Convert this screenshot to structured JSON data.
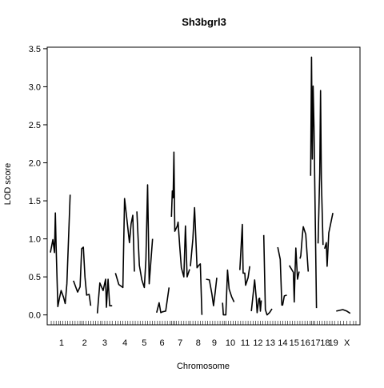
{
  "chart_data": {
    "type": "line",
    "title": "Sh3bgrl3",
    "xlabel": "Chromosome",
    "ylabel": "LOD score",
    "ylim": [
      -0.13,
      3.52
    ],
    "yticks": [
      0.0,
      0.5,
      1.0,
      1.5,
      2.0,
      2.5,
      3.0,
      3.5
    ],
    "ytick_labels": [
      "0.0",
      "0.5",
      "1.0",
      "1.5",
      "2.0",
      "2.5",
      "3.0",
      "3.5"
    ],
    "grid": false,
    "legend": "none",
    "line_color": "#000000",
    "chromosomes": [
      {
        "label": "1",
        "start": 0,
        "end": 27,
        "points": [
          [
            0,
            0.82
          ],
          [
            3,
            0.99
          ],
          [
            5,
            0.82
          ],
          [
            6,
            1.34
          ],
          [
            7,
            0.88
          ],
          [
            9,
            0.11
          ],
          [
            11,
            0.22
          ],
          [
            13,
            0.32
          ],
          [
            16,
            0.23
          ],
          [
            18,
            0.15
          ],
          [
            20,
            0.41
          ],
          [
            24,
            1.58
          ]
        ]
      },
      {
        "label": "2",
        "start": 28,
        "end": 55,
        "points": [
          [
            28,
            0.45
          ],
          [
            33,
            0.3
          ],
          [
            36,
            0.37
          ],
          [
            38,
            0.87
          ],
          [
            40,
            0.89
          ],
          [
            42,
            0.5
          ],
          [
            44,
            0.26
          ],
          [
            47,
            0.27
          ],
          [
            49,
            0.12
          ]
        ]
      },
      {
        "label": "3",
        "start": 56,
        "end": 76,
        "points": [
          [
            57,
            0.02
          ],
          [
            60,
            0.42
          ],
          [
            64,
            0.32
          ],
          [
            67,
            0.47
          ],
          [
            68,
            0.1
          ],
          [
            70,
            0.47
          ],
          [
            72,
            0.12
          ],
          [
            75,
            0.12
          ]
        ]
      },
      {
        "label": "4",
        "start": 78,
        "end": 103,
        "points": [
          [
            79,
            0.55
          ],
          [
            83,
            0.4
          ],
          [
            88,
            0.36
          ],
          [
            90,
            1.53
          ],
          [
            93,
            1.24
          ],
          [
            96,
            0.95
          ],
          [
            98,
            1.2
          ],
          [
            100,
            1.31
          ],
          [
            102,
            0.57
          ]
        ]
      },
      {
        "label": "5",
        "start": 104,
        "end": 124,
        "points": [
          [
            105,
            1.36
          ],
          [
            108,
            0.65
          ],
          [
            111,
            0.46
          ],
          [
            114,
            0.36
          ],
          [
            116,
            0.73
          ],
          [
            118,
            1.71
          ],
          [
            120,
            0.41
          ],
          [
            124,
            1.0
          ]
        ]
      },
      {
        "label": "6",
        "start": 126,
        "end": 145,
        "points": [
          [
            129,
            0.03
          ],
          [
            132,
            0.16
          ],
          [
            134,
            0.03
          ],
          [
            136,
            0.04
          ],
          [
            140,
            0.05
          ],
          [
            144,
            0.36
          ]
        ]
      },
      {
        "label": "7",
        "start": 145,
        "end": 170,
        "points": [
          [
            147,
            1.29
          ],
          [
            148,
            1.63
          ],
          [
            149,
            1.54
          ],
          [
            150,
            2.14
          ],
          [
            151,
            1.1
          ],
          [
            154,
            1.17
          ],
          [
            155,
            1.22
          ],
          [
            157,
            0.91
          ],
          [
            159,
            0.62
          ],
          [
            162,
            0.5
          ],
          [
            164,
            1.17
          ],
          [
            166,
            0.5
          ],
          [
            169,
            0.6
          ]
        ]
      },
      {
        "label": "8",
        "start": 170,
        "end": 189,
        "points": [
          [
            170,
            0.64
          ],
          [
            173,
            1.0
          ],
          [
            175,
            1.41
          ],
          [
            176,
            1.16
          ],
          [
            178,
            0.62
          ],
          [
            180,
            0.65
          ],
          [
            182,
            0.67
          ],
          [
            184,
            0.0
          ]
        ]
      },
      {
        "label": "9",
        "start": 189,
        "end": 209,
        "points": [
          [
            189,
            0.47
          ],
          [
            193,
            0.46
          ],
          [
            196,
            0.28
          ],
          [
            198,
            0.12
          ],
          [
            200,
            0.29
          ],
          [
            202,
            0.49
          ]
        ]
      },
      {
        "label": "10",
        "start": 209,
        "end": 228,
        "points": [
          [
            209,
            0.16
          ],
          [
            210,
            0.0
          ],
          [
            212,
            0.0
          ],
          [
            213,
            0.0
          ],
          [
            215,
            0.59
          ],
          [
            217,
            0.34
          ],
          [
            220,
            0.24
          ],
          [
            223,
            0.17
          ]
        ]
      },
      {
        "label": "11",
        "start": 228,
        "end": 245,
        "points": [
          [
            230,
            0.59
          ],
          [
            233,
            1.19
          ],
          [
            234,
            0.55
          ],
          [
            236,
            0.55
          ],
          [
            237,
            0.39
          ],
          [
            240,
            0.49
          ],
          [
            242,
            0.64
          ]
        ]
      },
      {
        "label": "12",
        "start": 245,
        "end": 259,
        "points": [
          [
            244,
            0.05
          ],
          [
            248,
            0.46
          ],
          [
            250,
            0.21
          ],
          [
            251,
            0.03
          ],
          [
            253,
            0.21
          ],
          [
            254,
            0.22
          ],
          [
            255,
            0.05
          ],
          [
            256,
            0.19
          ]
        ]
      },
      {
        "label": "13",
        "start": 259,
        "end": 275,
        "points": [
          [
            259,
            1.05
          ],
          [
            261,
            0.07
          ],
          [
            263,
            0.0
          ],
          [
            266,
            0.03
          ],
          [
            269,
            0.08
          ]
        ]
      },
      {
        "label": "14",
        "start": 275,
        "end": 289,
        "points": [
          [
            276,
            0.89
          ],
          [
            279,
            0.73
          ],
          [
            281,
            0.13
          ],
          [
            282,
            0.13
          ],
          [
            284,
            0.25
          ],
          [
            287,
            0.26
          ]
        ]
      },
      {
        "label": "15",
        "start": 289,
        "end": 303,
        "points": [
          [
            290,
            0.65
          ],
          [
            295,
            0.56
          ],
          [
            296,
            0.17
          ],
          [
            297,
            0.56
          ],
          [
            298,
            0.88
          ],
          [
            300,
            0.47
          ],
          [
            302,
            0.57
          ]
        ]
      },
      {
        "label": "16",
        "start": 303,
        "end": 316,
        "points": [
          [
            303,
            0.74
          ],
          [
            304,
            0.78
          ],
          [
            306,
            1.05
          ],
          [
            307,
            1.16
          ],
          [
            310,
            1.06
          ],
          [
            313,
            0.57
          ]
        ]
      },
      {
        "label": "17",
        "start": 316,
        "end": 328,
        "points": [
          [
            316,
            1.83
          ],
          [
            317,
            3.39
          ],
          [
            318,
            2.05
          ],
          [
            319,
            3.01
          ],
          [
            320,
            2.47
          ],
          [
            323,
            0.09
          ]
        ]
      },
      {
        "label": "18",
        "start": 328,
        "end": 339,
        "points": [
          [
            325,
            0.94
          ],
          [
            327,
            1.87
          ],
          [
            328,
            2.95
          ],
          [
            329,
            1.78
          ],
          [
            331,
            0.92
          ]
        ]
      },
      {
        "label": "19",
        "start": 339,
        "end": 348,
        "points": [
          [
            333,
            0.87
          ],
          [
            335,
            0.95
          ],
          [
            336,
            0.64
          ],
          [
            338,
            1.08
          ],
          [
            343,
            1.34
          ]
        ]
      },
      {
        "label": "X",
        "start": 348,
        "end": 372,
        "points": [
          [
            347,
            0.05
          ],
          [
            355,
            0.07
          ],
          [
            360,
            0.05
          ],
          [
            364,
            0.02
          ]
        ]
      }
    ],
    "x_range": [
      0,
      372
    ],
    "marker_positions": [
      1,
      4,
      7,
      10,
      12,
      15,
      18,
      21,
      24,
      27,
      30,
      33,
      36,
      38,
      40,
      43,
      46,
      49,
      52,
      55,
      58,
      61,
      63,
      66,
      69,
      72,
      75,
      79,
      82,
      85,
      88,
      91,
      94,
      97,
      100,
      103,
      106,
      109,
      112,
      115,
      118,
      121,
      124,
      127,
      130,
      133,
      136,
      139,
      142,
      145,
      147,
      149,
      151,
      153,
      156,
      159,
      162,
      165,
      168,
      170,
      173,
      176,
      179,
      182,
      185,
      188,
      191,
      194,
      197,
      200,
      203,
      206,
      209,
      211,
      213,
      216,
      219,
      222,
      225,
      228,
      231,
      234,
      237,
      240,
      243,
      246,
      249,
      252,
      255,
      258,
      261,
      264,
      267,
      270,
      273,
      276,
      279,
      282,
      285,
      288,
      291,
      294,
      297,
      300,
      303,
      306,
      309,
      312,
      315,
      317,
      319,
      321,
      324,
      327,
      330,
      333,
      336,
      339,
      342,
      345,
      349,
      352,
      356,
      360,
      364,
      368,
      371
    ]
  }
}
